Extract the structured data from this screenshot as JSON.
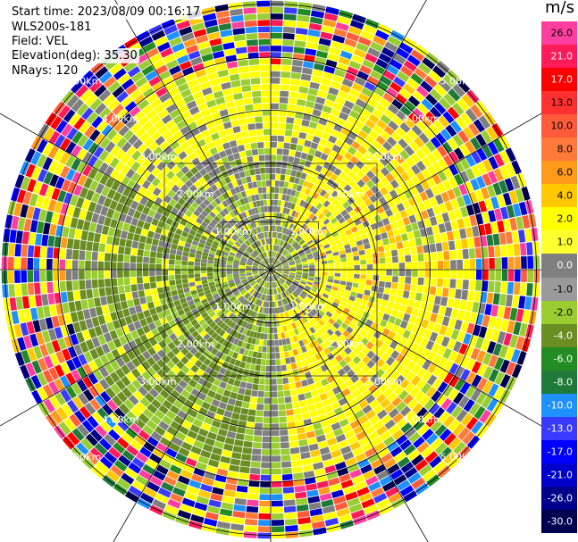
{
  "info": {
    "start_time": "Start time: 2023/08/09 00:16:17",
    "device": "WLS200s-181",
    "field": "Field: VEL",
    "elevation": "Elevation(deg): 35.30",
    "nrays": "NRays: 120"
  },
  "colorbar": {
    "unit": "m/s",
    "labels": [
      "26.0",
      "21.0",
      "17.0",
      "13.0",
      "10.0",
      "8.0",
      "6.0",
      "4.0",
      "2.0",
      "1.0",
      "0.0",
      "-1.0",
      "-2.0",
      "-4.0",
      "-6.0",
      "-8.0",
      "-10.0",
      "-13.0",
      "-17.0",
      "-21.0",
      "-26.0",
      "-30.0"
    ],
    "colors": [
      "#ff3fa0",
      "#ff1a5a",
      "#ff0000",
      "#ff3030",
      "#ff5a3a",
      "#ff7a3a",
      "#ff9a1a",
      "#ffc800",
      "#ffff00",
      "#ffff30",
      "#7f7f7f",
      "#9a9a9a",
      "#9acd32",
      "#6b8e23",
      "#228b22",
      "#1f7a3a",
      "#1e90ff",
      "#3a3aff",
      "#0000ff",
      "#0000cd",
      "#00008b",
      "#000050"
    ]
  },
  "rings": {
    "labels": [
      "1.00km",
      "2.00km",
      "3.00km",
      "4.00km",
      "5.00km"
    ]
  }
}
